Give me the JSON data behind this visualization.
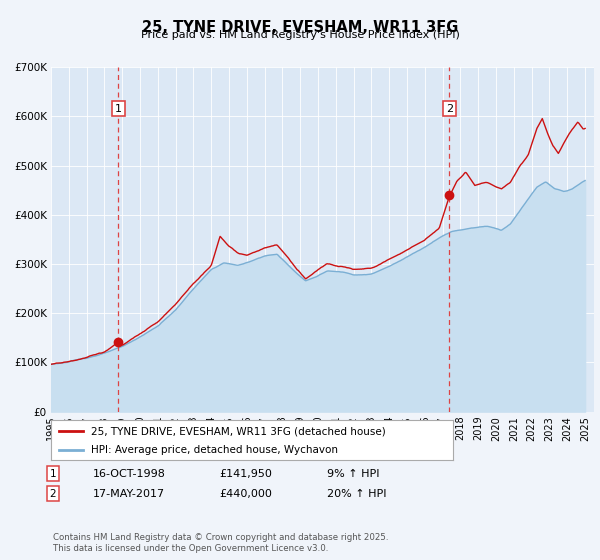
{
  "title": "25, TYNE DRIVE, EVESHAM, WR11 3FG",
  "subtitle": "Price paid vs. HM Land Registry's House Price Index (HPI)",
  "background_color": "#f0f4fa",
  "plot_bg_color": "#dce8f5",
  "ylim": [
    0,
    700000
  ],
  "yticks": [
    0,
    100000,
    200000,
    300000,
    400000,
    500000,
    600000,
    700000
  ],
  "ytick_labels": [
    "£0",
    "£100K",
    "£200K",
    "£300K",
    "£400K",
    "£500K",
    "£600K",
    "£700K"
  ],
  "xlim_start": 1995.0,
  "xlim_end": 2025.5,
  "xticks": [
    1995,
    1996,
    1997,
    1998,
    1999,
    2000,
    2001,
    2002,
    2003,
    2004,
    2005,
    2006,
    2007,
    2008,
    2009,
    2010,
    2011,
    2012,
    2013,
    2014,
    2015,
    2016,
    2017,
    2018,
    2019,
    2020,
    2021,
    2022,
    2023,
    2024,
    2025
  ],
  "hpi_color": "#7bafd4",
  "hpi_fill_color": "#c8dff0",
  "price_color": "#cc1111",
  "vline_color": "#dd4444",
  "marker1_x": 1998.79,
  "marker1_y": 141950,
  "marker2_x": 2017.38,
  "marker2_y": 440000,
  "marker_color": "#cc1111",
  "legend_line1": "25, TYNE DRIVE, EVESHAM, WR11 3FG (detached house)",
  "legend_line2": "HPI: Average price, detached house, Wychavon",
  "info1_num": "1",
  "info1_date": "16-OCT-1998",
  "info1_price": "£141,950",
  "info1_hpi": "9% ↑ HPI",
  "info2_num": "2",
  "info2_date": "17-MAY-2017",
  "info2_price": "£440,000",
  "info2_hpi": "20% ↑ HPI",
  "footer": "Contains HM Land Registry data © Crown copyright and database right 2025.\nThis data is licensed under the Open Government Licence v3.0."
}
